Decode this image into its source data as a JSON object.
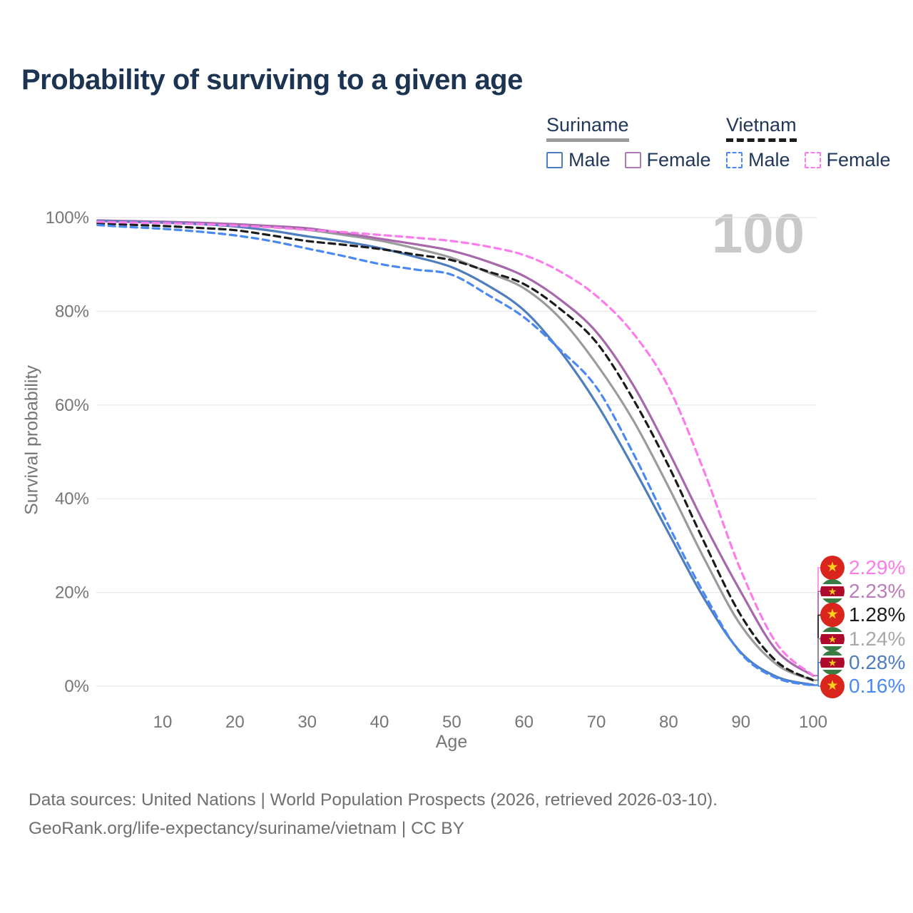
{
  "title": "Probability of surviving to a given age",
  "watermark": "100",
  "legend": {
    "groups": [
      {
        "label": "Suriname",
        "line": {
          "color": "#9b9b9b",
          "dash": "solid"
        },
        "items": [
          {
            "label": "Male",
            "color": "#4e7ebd",
            "dash": "solid"
          },
          {
            "label": "Female",
            "color": "#b279b5",
            "dash": "solid"
          }
        ]
      },
      {
        "label": "Vietnam",
        "line": {
          "color": "#1c1c1c",
          "dash": "dashed"
        },
        "items": [
          {
            "label": "Male",
            "color": "#4a89f3",
            "dash": "dashed"
          },
          {
            "label": "Female",
            "color": "#fc7cec",
            "dash": "dashed"
          }
        ]
      }
    ]
  },
  "chart_data": {
    "type": "line",
    "title": "Probability of surviving to a given age",
    "xlabel": "Age",
    "ylabel": "Survival probability",
    "xlim": [
      0,
      100
    ],
    "ylim": [
      0,
      100
    ],
    "grid": "horizontal",
    "x_ticks": [
      10,
      20,
      30,
      40,
      50,
      60,
      70,
      80,
      90,
      100
    ],
    "y_ticks": [
      {
        "value": 0,
        "label": "0%"
      },
      {
        "value": 20,
        "label": "20%"
      },
      {
        "value": 40,
        "label": "40%"
      },
      {
        "value": 60,
        "label": "60%"
      },
      {
        "value": 80,
        "label": "80%"
      },
      {
        "value": 100,
        "label": "100%"
      }
    ],
    "x": [
      1,
      5,
      10,
      15,
      20,
      25,
      30,
      35,
      40,
      45,
      50,
      55,
      60,
      65,
      70,
      75,
      80,
      85,
      90,
      95,
      100
    ],
    "series": [
      {
        "id": "suriname-total",
        "name": "Suriname",
        "color": "#9b9b9b",
        "dash": "solid",
        "values": [
          99.3,
          99.15,
          99.0,
          98.75,
          98.4,
          98.0,
          97.4,
          96.3,
          95.1,
          93.4,
          91.4,
          88.3,
          84.9,
          78.5,
          68.8,
          57.0,
          42.5,
          27.0,
          13.0,
          4.6,
          1.24
        ]
      },
      {
        "id": "suriname-female",
        "name": "Suriname Female",
        "color": "#a667ab",
        "dash": "solid",
        "values": [
          99.4,
          99.25,
          99.1,
          98.9,
          98.6,
          98.2,
          97.7,
          96.7,
          95.5,
          94.3,
          92.9,
          90.6,
          87.5,
          82.5,
          75.6,
          64.5,
          50.1,
          34.5,
          20.1,
          7.5,
          2.23
        ]
      },
      {
        "id": "suriname-male",
        "name": "Suriname Male",
        "color": "#4e7ebd",
        "dash": "solid",
        "values": [
          99.3,
          99.1,
          98.9,
          98.6,
          98.1,
          97.2,
          96.0,
          94.9,
          93.5,
          91.6,
          89.4,
          85.5,
          80.2,
          71.5,
          60.4,
          47.0,
          32.7,
          18.5,
          7.2,
          2.0,
          0.28
        ]
      },
      {
        "id": "vietnam-total",
        "name": "Vietnam",
        "color": "#1c1c1c",
        "dash": "dashed",
        "values": [
          98.8,
          98.5,
          98.2,
          97.8,
          97.3,
          96.2,
          95.0,
          94.2,
          93.3,
          92.1,
          90.9,
          88.5,
          85.8,
          80.5,
          73.4,
          61.5,
          47.0,
          30.5,
          15.1,
          5.2,
          1.28
        ]
      },
      {
        "id": "vietnam-female",
        "name": "Vietnam Female",
        "color": "#fc7cec",
        "dash": "dashed",
        "values": [
          99.1,
          98.95,
          98.8,
          98.6,
          98.3,
          97.9,
          97.4,
          96.9,
          96.3,
          95.7,
          95.0,
          93.8,
          92.0,
          88.5,
          83.3,
          75.5,
          63.8,
          45.5,
          24.7,
          9.0,
          2.29
        ]
      },
      {
        "id": "vietnam-male",
        "name": "Vietnam Male",
        "color": "#4a89f3",
        "dash": "dashed",
        "values": [
          98.4,
          98.0,
          97.6,
          97.0,
          96.2,
          95.0,
          93.4,
          91.8,
          90.1,
          88.9,
          87.8,
          83.5,
          78.7,
          71.8,
          63.8,
          50.0,
          34.3,
          19.5,
          7.0,
          1.7,
          0.16
        ]
      }
    ],
    "end_labels": [
      {
        "value": "2.29%",
        "series_index": 4,
        "flag": "vietnam",
        "color": "#fc7cec"
      },
      {
        "value": "2.23%",
        "series_index": 1,
        "flag": "suriname",
        "color": "#bc7cbc"
      },
      {
        "value": "1.28%",
        "series_index": 3,
        "flag": "vietnam",
        "color": "#1c1c1c"
      },
      {
        "value": "1.24%",
        "series_index": 0,
        "flag": "suriname",
        "color": "#a8a8a8"
      },
      {
        "value": "0.28%",
        "series_index": 2,
        "flag": "suriname",
        "color": "#4e7ebd"
      },
      {
        "value": "0.16%",
        "series_index": 5,
        "flag": "vietnam",
        "color": "#4a89f3"
      }
    ]
  },
  "footer": {
    "line1": "Data sources: United Nations | World Population Prospects (2026, retrieved 2026-03-10).",
    "line2": "GeoRank.org/life-expectancy/suriname/vietnam | CC BY"
  }
}
